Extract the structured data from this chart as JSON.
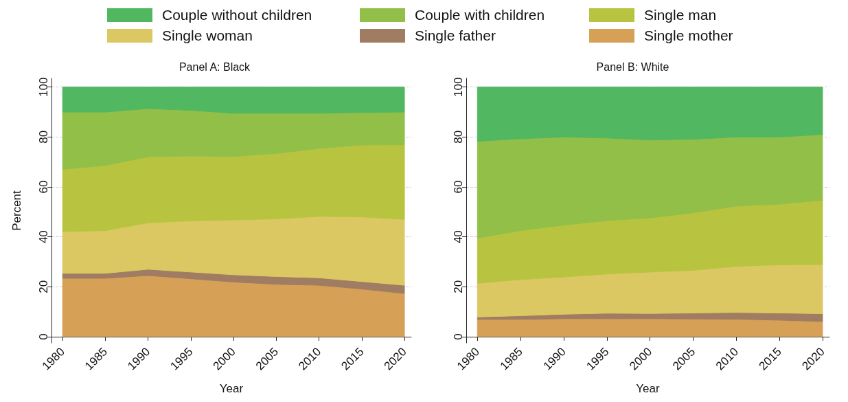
{
  "chart_data": [
    {
      "type": "area",
      "title": "Panel A: Black",
      "xlabel": "Year",
      "ylabel": "Percent",
      "stacked": true,
      "legend": "top",
      "grid": "y",
      "x": [
        1980,
        1985,
        1990,
        1995,
        2000,
        2005,
        2010,
        2015,
        2020
      ],
      "xlim": [
        1978.7,
        2020.8
      ],
      "xticks": [
        1980,
        1985,
        1990,
        1995,
        2000,
        2005,
        2010,
        2015,
        2020
      ],
      "ylim": [
        -2.5,
        103.5
      ],
      "yticks": [
        0,
        20,
        40,
        60,
        80,
        100
      ],
      "series": [
        {
          "name": "Single mother",
          "color": "#d6a056",
          "values": [
            23.4,
            23.4,
            24.5,
            23.2,
            21.9,
            21.0,
            20.6,
            19.1,
            17.3
          ]
        },
        {
          "name": "Single father",
          "color": "#a07c62",
          "values": [
            2.0,
            2.0,
            2.5,
            2.7,
            2.9,
            3.1,
            3.0,
            3.0,
            3.3
          ]
        },
        {
          "name": "Single woman",
          "color": "#dbc862",
          "values": [
            16.7,
            17.1,
            18.6,
            20.5,
            22.0,
            23.1,
            24.6,
            25.9,
            26.4
          ]
        },
        {
          "name": "Single man",
          "color": "#b8c440",
          "values": [
            25.0,
            26.1,
            26.5,
            26.0,
            25.4,
            26.2,
            27.2,
            28.8,
            29.9
          ]
        },
        {
          "name": "Couple with children",
          "color": "#92bf48",
          "values": [
            22.9,
            21.4,
            19.3,
            18.3,
            17.3,
            16.1,
            14.1,
            13.0,
            13.1
          ]
        },
        {
          "name": "Couple without children",
          "color": "#52b761",
          "values": [
            10.0,
            10.0,
            8.6,
            9.3,
            10.5,
            10.5,
            10.5,
            10.2,
            10.0
          ]
        }
      ]
    },
    {
      "type": "area",
      "title": "Panel B: White",
      "xlabel": "Year",
      "stacked": true,
      "grid": "y",
      "x": [
        1980,
        1985,
        1990,
        1995,
        2000,
        2005,
        2010,
        2015,
        2020
      ],
      "xlim": [
        1978.7,
        2020.8
      ],
      "xticks": [
        1980,
        1985,
        1990,
        1995,
        2000,
        2005,
        2010,
        2015,
        2020
      ],
      "ylim": [
        -2.5,
        103.5
      ],
      "yticks": [
        0,
        20,
        40,
        60,
        80,
        100
      ],
      "series": [
        {
          "name": "Single mother",
          "color": "#d6a056",
          "values": [
            6.9,
            6.9,
            7.2,
            7.2,
            7.2,
            7.1,
            7.0,
            6.6,
            6.1
          ]
        },
        {
          "name": "Single father",
          "color": "#a07c62",
          "values": [
            1.0,
            1.5,
            1.8,
            2.2,
            2.1,
            2.4,
            2.7,
            2.9,
            3.1
          ]
        },
        {
          "name": "Single woman",
          "color": "#dbc862",
          "values": [
            13.5,
            14.5,
            14.9,
            15.7,
            16.6,
            17.1,
            18.5,
            19.3,
            19.7
          ]
        },
        {
          "name": "Single man",
          "color": "#b8c440",
          "values": [
            18.1,
            19.6,
            20.8,
            21.4,
            21.7,
            23.0,
            24.1,
            24.3,
            25.8
          ]
        },
        {
          "name": "Couple with children",
          "color": "#92bf48",
          "values": [
            38.8,
            36.8,
            35.3,
            33.1,
            31.2,
            29.5,
            27.7,
            26.9,
            26.3
          ]
        },
        {
          "name": "Couple without children",
          "color": "#52b761",
          "values": [
            21.7,
            20.7,
            20.0,
            20.4,
            21.2,
            20.9,
            20.0,
            20.0,
            19.0
          ]
        }
      ]
    }
  ]
}
